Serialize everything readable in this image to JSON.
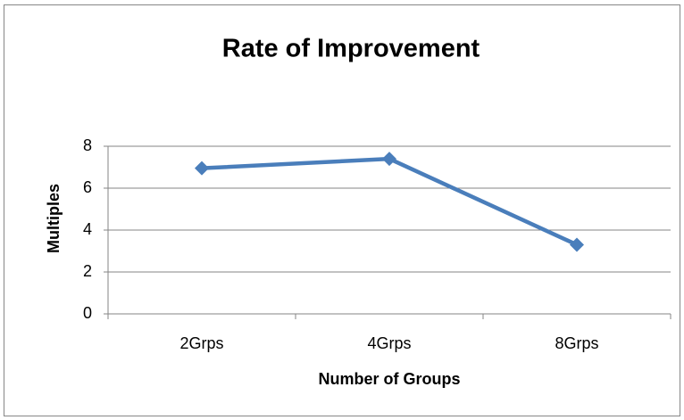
{
  "chart_data": {
    "type": "line",
    "title": "Rate of Improvement",
    "x_label": "Number of Groups",
    "y_label": "Multiples",
    "categories": [
      "2Grps",
      "4Grps",
      "8Grps"
    ],
    "series": [
      {
        "name": "Multiples",
        "color": "#4a7ebb",
        "values": [
          6.95,
          7.4,
          3.3
        ]
      }
    ],
    "ylim": [
      0,
      8
    ],
    "yticks": [
      0,
      2,
      4,
      6,
      8
    ],
    "grid": true
  }
}
